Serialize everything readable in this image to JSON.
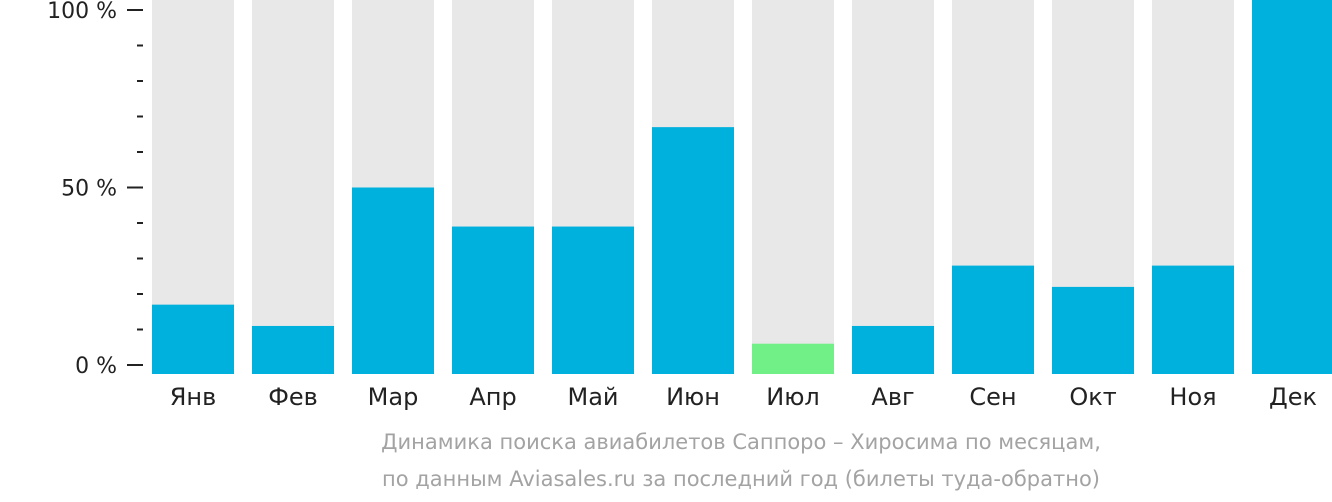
{
  "chart_data": {
    "type": "bar",
    "categories": [
      "Янв",
      "Фев",
      "Мар",
      "Апр",
      "Май",
      "Июн",
      "Июл",
      "Авг",
      "Сен",
      "Окт",
      "Ноя",
      "Дек"
    ],
    "values": [
      17,
      11,
      50,
      39,
      39,
      67,
      6,
      11,
      28,
      22,
      28,
      103
    ],
    "ylim": [
      0,
      100
    ],
    "yticks": [
      {
        "value": 100,
        "label": "100 %"
      },
      {
        "value": 50,
        "label": "50 %"
      },
      {
        "value": 0,
        "label": "0 %"
      }
    ],
    "minor_tick_step": 10,
    "background_bar_value": 103,
    "highlight_category": "Июл",
    "grid": false,
    "legend": "none"
  },
  "colors": {
    "bar": "#00b0dd",
    "bar_highlight": "#72f088",
    "bar_background": "#e8e8e8",
    "axis": "#222222",
    "caption": "#a3a3a3"
  },
  "caption": {
    "line1": "Динамика поиска авиабилетов Саппоро – Хиросима по месяцам,",
    "line2": "по данным Aviasales.ru за последний год (билеты туда-обратно)"
  }
}
